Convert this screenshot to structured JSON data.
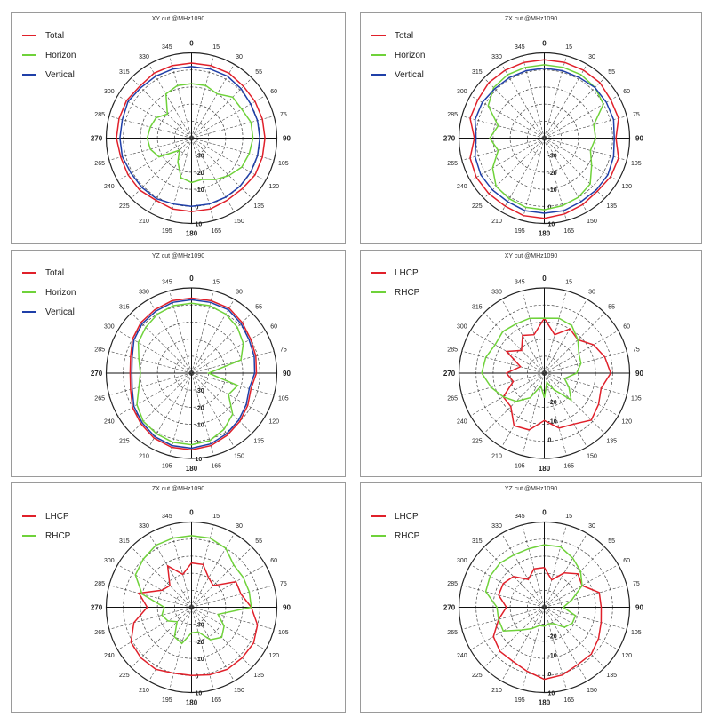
{
  "colors": {
    "Total": "#e0202a",
    "Horizon": "#6fd23a",
    "Vertical": "#1f3fa8",
    "LHCP": "#e0202a",
    "RHCP": "#6fd23a"
  },
  "chart_data": [
    {
      "type": "polar-line",
      "title": "XY cut @MHz1090",
      "angle_labels": [
        "0",
        "15",
        "30",
        "55",
        "60",
        "75",
        "90",
        "105",
        "120",
        "135",
        "150",
        "165",
        "180",
        "195",
        "210",
        "225",
        "240",
        "265",
        "270",
        "285",
        "300",
        "315",
        "330",
        "345"
      ],
      "ring_labels": [
        "-30",
        "-20",
        "-10",
        "0",
        "10"
      ],
      "rmin": -40,
      "rmax": 10,
      "legend": [
        "Total",
        "Horizon",
        "Vertical"
      ],
      "series": [
        {
          "name": "Total",
          "values": [
            4,
            4,
            4,
            3,
            3,
            3,
            3,
            3,
            3,
            2,
            2,
            3,
            3,
            3,
            2,
            3,
            3,
            3,
            4,
            4,
            4,
            3,
            4,
            4
          ]
        },
        {
          "name": "Horizon",
          "values": [
            -8,
            -8,
            -10,
            -6,
            -6,
            -4,
            -4,
            -5,
            -6,
            -9,
            -12,
            -15,
            -14,
            -16,
            -24,
            -30,
            -18,
            -15,
            -14,
            -15,
            -16,
            -20,
            -10,
            -8
          ]
        },
        {
          "name": "Vertical",
          "values": [
            2,
            2,
            2,
            1,
            0,
            0,
            0,
            0,
            0,
            0,
            0,
            0,
            0,
            0,
            1,
            1,
            1,
            2,
            2,
            2,
            3,
            2,
            2,
            2
          ]
        }
      ]
    },
    {
      "type": "polar-line",
      "title": "ZX cut @MHz1090",
      "angle_labels": [
        "0",
        "15",
        "30",
        "55",
        "60",
        "75",
        "90",
        "105",
        "120",
        "135",
        "150",
        "165",
        "180",
        "195",
        "210",
        "225",
        "240",
        "265",
        "270",
        "285",
        "300",
        "315",
        "330",
        "345"
      ],
      "ring_labels": [
        "-30",
        "-20",
        "-10",
        "0",
        "10"
      ],
      "rmin": -40,
      "rmax": 10,
      "legend": [
        "Total",
        "Horizon",
        "Vertical"
      ],
      "series": [
        {
          "name": "Total",
          "values": [
            6,
            6,
            6,
            6,
            5,
            5,
            2,
            5,
            5,
            4,
            5,
            6,
            7,
            7,
            6,
            6,
            6,
            5,
            1,
            5,
            5,
            6,
            6,
            6
          ]
        },
        {
          "name": "Horizon",
          "values": [
            3,
            3,
            3,
            2,
            0,
            -10,
            -10,
            -12,
            -8,
            -2,
            0,
            1,
            2,
            2,
            1,
            0,
            -5,
            -12,
            -8,
            -12,
            -2,
            2,
            3,
            3
          ]
        },
        {
          "name": "Vertical",
          "values": [
            1,
            1,
            1,
            2,
            2,
            2,
            1,
            2,
            3,
            3,
            3,
            4,
            4,
            4,
            3,
            3,
            3,
            2,
            0,
            2,
            2,
            1,
            1,
            1
          ]
        }
      ]
    },
    {
      "type": "polar-line",
      "title": "YZ cut @MHz1090",
      "angle_labels": [
        "0",
        "15",
        "30",
        "55",
        "60",
        "75",
        "90",
        "105",
        "120",
        "135",
        "150",
        "165",
        "180",
        "195",
        "210",
        "225",
        "240",
        "265",
        "270",
        "285",
        "300",
        "315",
        "330",
        "345"
      ],
      "ring_labels": [
        "-30",
        "-20",
        "-10",
        "0",
        "10"
      ],
      "rmin": -40,
      "rmax": 10,
      "legend": [
        "Total",
        "Horizon",
        "Vertical"
      ],
      "series": [
        {
          "name": "Total",
          "values": [
            4,
            4,
            4,
            2,
            0,
            -1,
            -2,
            -4,
            -2,
            0,
            2,
            4,
            5,
            5,
            4,
            2,
            0,
            -3,
            -4,
            -3,
            0,
            2,
            3,
            4
          ]
        },
        {
          "name": "Horizon",
          "values": [
            1,
            1,
            0,
            -2,
            -5,
            -10,
            -30,
            -12,
            -15,
            -6,
            -2,
            1,
            2,
            2,
            1,
            0,
            -3,
            -8,
            -10,
            -8,
            -4,
            -2,
            0,
            1
          ]
        },
        {
          "name": "Vertical",
          "values": [
            3,
            3,
            3,
            1,
            -1,
            -2,
            -3,
            -5,
            -3,
            -1,
            1,
            3,
            4,
            4,
            3,
            1,
            -1,
            -4,
            -5,
            -4,
            -1,
            1,
            2,
            3
          ]
        }
      ]
    },
    {
      "type": "polar-line",
      "title": "XY cut @MHz1090",
      "angle_labels": [
        "0",
        "15",
        "30",
        "55",
        "60",
        "75",
        "90",
        "105",
        "120",
        "135",
        "150",
        "165",
        "180",
        "195",
        "210",
        "225",
        "240",
        "265",
        "270",
        "285",
        "300",
        "315",
        "330",
        "345"
      ],
      "ring_labels": [
        "-20",
        "-10",
        "0"
      ],
      "rmin": -35,
      "rmax": 10,
      "legend": [
        "LHCP",
        "RHCP"
      ],
      "series": [
        {
          "name": "LHCP",
          "values": [
            -6,
            -14,
            -8,
            -10,
            -5,
            -2,
            0,
            -4,
            -2,
            0,
            -4,
            -5,
            -10,
            -4,
            -3,
            -10,
            -10,
            -18,
            -15,
            -22,
            -12,
            -18,
            -12,
            -14
          ]
        },
        {
          "name": "RHCP",
          "values": [
            -6,
            -5,
            -6,
            -10,
            -14,
            -15,
            -18,
            -24,
            -20,
            -15,
            -25,
            -30,
            -22,
            -28,
            -20,
            -14,
            -10,
            -6,
            -2,
            -3,
            -5,
            -4,
            -5,
            -5
          ]
        }
      ]
    },
    {
      "type": "polar-line",
      "title": "ZX cut @MHz1090",
      "angle_labels": [
        "0",
        "15",
        "30",
        "55",
        "60",
        "75",
        "90",
        "105",
        "120",
        "135",
        "150",
        "165",
        "180",
        "195",
        "210",
        "225",
        "240",
        "265",
        "270",
        "285",
        "300",
        "315",
        "330",
        "345"
      ],
      "ring_labels": [
        "-30",
        "-20",
        "-10",
        "0",
        "10"
      ],
      "rmin": -40,
      "rmax": 10,
      "legend": [
        "LHCP",
        "RHCP"
      ],
      "series": [
        {
          "name": "LHCP",
          "values": [
            -14,
            -14,
            -20,
            -22,
            -10,
            -10,
            -5,
            0,
            2,
            2,
            2,
            1,
            0,
            0,
            2,
            2,
            1,
            -5,
            -14,
            -8,
            -20,
            -22,
            -12,
            -20
          ]
        },
        {
          "name": "RHCP",
          "values": [
            2,
            2,
            0,
            -5,
            -5,
            -5,
            -5,
            -24,
            -18,
            -15,
            -18,
            -25,
            -25,
            -18,
            -20,
            -28,
            -24,
            -22,
            -24,
            -10,
            -2,
            0,
            2,
            2
          ]
        }
      ]
    },
    {
      "type": "polar-line",
      "title": "YZ cut @MHz1090",
      "angle_labels": [
        "0",
        "15",
        "30",
        "55",
        "60",
        "75",
        "90",
        "105",
        "120",
        "135",
        "150",
        "165",
        "180",
        "195",
        "210",
        "225",
        "240",
        "265",
        "270",
        "285",
        "300",
        "315",
        "330",
        "345"
      ],
      "ring_labels": [
        "-20",
        "-10",
        "0",
        "10"
      ],
      "rmin": -35,
      "rmax": 10,
      "legend": [
        "LHCP",
        "RHCP"
      ],
      "series": [
        {
          "name": "LHCP",
          "values": [
            -14,
            -20,
            -14,
            -10,
            -12,
            -5,
            -5,
            -4,
            -2,
            0,
            0,
            2,
            3,
            0,
            -2,
            -2,
            -4,
            -10,
            -15,
            -10,
            -10,
            -12,
            -18,
            -14
          ]
        },
        {
          "name": "RHCP",
          "values": [
            -2,
            -2,
            -5,
            -8,
            -12,
            -20,
            -25,
            -18,
            -18,
            -20,
            -25,
            -26,
            -25,
            -25,
            -22,
            -18,
            -10,
            -10,
            -10,
            -3,
            -2,
            -2,
            -3,
            -3
          ]
        }
      ]
    }
  ]
}
